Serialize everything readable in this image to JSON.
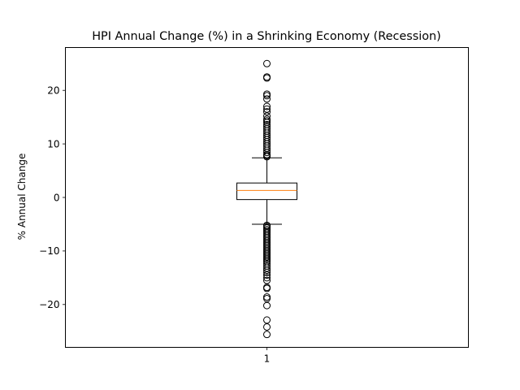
{
  "chart_data": {
    "type": "box",
    "title": "HPI Annual Change (%) in a Shrinking Economy (Recession)",
    "xlabel": "",
    "ylabel": "% Annual Change",
    "categories": [
      "1"
    ],
    "ylim": [
      -28,
      28
    ],
    "yticks": [
      -20,
      -10,
      0,
      10,
      20
    ],
    "grid": false,
    "series": [
      {
        "category": "1",
        "whisker_low": -5.0,
        "q1": -0.4,
        "median": 1.3,
        "q3": 2.7,
        "whisker_high": 7.4,
        "outliers": [
          25.0,
          22.5,
          22.3,
          19.3,
          19.0,
          18.4,
          17.0,
          16.5,
          16.0,
          15.2,
          14.6,
          14.3,
          14.0,
          13.6,
          13.2,
          12.8,
          12.4,
          12.0,
          11.6,
          11.2,
          10.8,
          10.4,
          10.0,
          9.6,
          9.2,
          8.8,
          8.4,
          8.0,
          7.8,
          7.6,
          -5.2,
          -5.4,
          -5.7,
          -6.0,
          -6.3,
          -6.6,
          -6.9,
          -7.2,
          -7.5,
          -7.8,
          -8.1,
          -8.4,
          -8.7,
          -9.0,
          -9.3,
          -9.6,
          -9.9,
          -10.2,
          -10.5,
          -10.8,
          -11.1,
          -11.4,
          -11.7,
          -12.0,
          -12.4,
          -12.8,
          -13.2,
          -13.6,
          -14.0,
          -14.5,
          -15.0,
          -15.5,
          -16.8,
          -17.0,
          -18.6,
          -18.9,
          -20.2,
          -22.9,
          -24.2,
          -25.6
        ]
      }
    ]
  }
}
